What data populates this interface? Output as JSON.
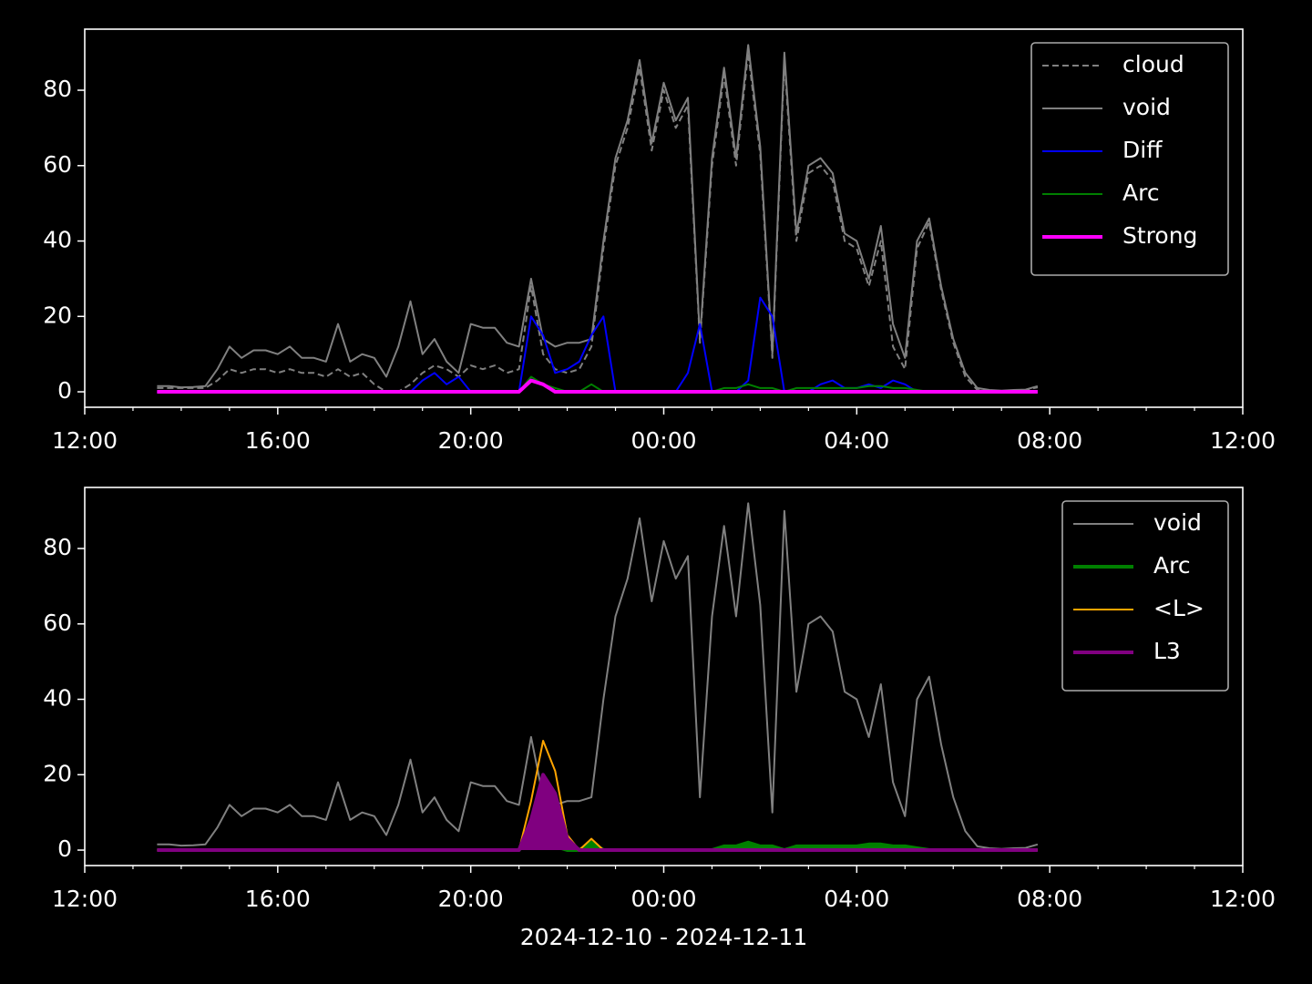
{
  "chart_data": [
    {
      "type": "line",
      "x": [
        1.5,
        1.75,
        2,
        2.25,
        2.5,
        2.75,
        3,
        3.25,
        3.5,
        3.75,
        4,
        4.25,
        4.5,
        4.75,
        5,
        5.25,
        5.5,
        5.75,
        6,
        6.25,
        6.5,
        6.75,
        7,
        7.25,
        7.5,
        7.75,
        8,
        8.25,
        8.5,
        8.75,
        9,
        9.25,
        9.5,
        9.75,
        10,
        10.25,
        10.5,
        10.75,
        11,
        11.25,
        11.5,
        11.75,
        12,
        12.25,
        12.5,
        12.75,
        13,
        13.25,
        13.5,
        13.75,
        14,
        14.25,
        14.5,
        14.75,
        15,
        15.25,
        15.5,
        15.75,
        16,
        16.25,
        16.5,
        16.75,
        17,
        17.25,
        17.5,
        17.75,
        18,
        18.25,
        18.5,
        18.75,
        19,
        19.25,
        19.5,
        19.75
      ],
      "series": [
        {
          "name": "cloud",
          "color": "#808080",
          "dash": "dashed",
          "linewidth": 2,
          "values": [
            1,
            1,
            1,
            1,
            1,
            3,
            6,
            5,
            6,
            6,
            5,
            6,
            5,
            5,
            4,
            6,
            4,
            5,
            2,
            0,
            0,
            2,
            5,
            7,
            6,
            4,
            7,
            6,
            7,
            5,
            6,
            28,
            10,
            6,
            5,
            6,
            12,
            38,
            60,
            70,
            86,
            64,
            80,
            70,
            76,
            13,
            60,
            84,
            60,
            90,
            63,
            9,
            88,
            40,
            58,
            60,
            56,
            40,
            38,
            28,
            40,
            12,
            6,
            38,
            45,
            27,
            13,
            4,
            0.5,
            0.3,
            0.2,
            0.3,
            0.5,
            1.2
          ]
        },
        {
          "name": "void",
          "color": "#808080",
          "linewidth": 2,
          "values": [
            1.5,
            1.5,
            1.2,
            1.3,
            1.5,
            6,
            12,
            9,
            11,
            11,
            10,
            12,
            9,
            9,
            8,
            18,
            8,
            10,
            9,
            4,
            12,
            24,
            10,
            14,
            8,
            5,
            18,
            17,
            17,
            13,
            12,
            30,
            14,
            12,
            13,
            13,
            14,
            40,
            62,
            72,
            88,
            66,
            82,
            72,
            78,
            14,
            62,
            86,
            62,
            92,
            65,
            10,
            90,
            42,
            60,
            62,
            58,
            42,
            40,
            30,
            44,
            18,
            9,
            40,
            46,
            28,
            14,
            5,
            1,
            0.5,
            0.3,
            0.5,
            0.6,
            1.5
          ]
        },
        {
          "name": "Diff",
          "color": "#0000ff",
          "linewidth": 2,
          "values": [
            0,
            0,
            0,
            0,
            0,
            0,
            0,
            0,
            0,
            0,
            0,
            0,
            0,
            0,
            0,
            0,
            0,
            0,
            0,
            0,
            0,
            0,
            3,
            5,
            2,
            4,
            0,
            0,
            0,
            0,
            0,
            20,
            15,
            5,
            6,
            8,
            15,
            20,
            0,
            0,
            0,
            0,
            0,
            0,
            5,
            18,
            0,
            0,
            0,
            3,
            25,
            20,
            0,
            0,
            0,
            2,
            3,
            1,
            1,
            2,
            1,
            3,
            2,
            0,
            0,
            0,
            0,
            0,
            0,
            0,
            0,
            0,
            0,
            0
          ]
        },
        {
          "name": "Arc",
          "color": "#008000",
          "linewidth": 2,
          "values": [
            0,
            0,
            0,
            0,
            0,
            0,
            0,
            0,
            0,
            0,
            0,
            0,
            0,
            0,
            0,
            0,
            0,
            0,
            0,
            0,
            0,
            0,
            0,
            0,
            0,
            0,
            0,
            0,
            0,
            0,
            0,
            4,
            2,
            1,
            0,
            0,
            2,
            0,
            0,
            0,
            0,
            0,
            0,
            0,
            0,
            0,
            0,
            1,
            1,
            2,
            1,
            1,
            0,
            1,
            1,
            1,
            1,
            1,
            1,
            1.5,
            1.5,
            1,
            1,
            0.5,
            0,
            0,
            0,
            0,
            0,
            0,
            0,
            0,
            0,
            0
          ]
        },
        {
          "name": "Strong",
          "color": "#ff00ff",
          "linewidth": 4,
          "values": [
            0,
            0,
            0,
            0,
            0,
            0,
            0,
            0,
            0,
            0,
            0,
            0,
            0,
            0,
            0,
            0,
            0,
            0,
            0,
            0,
            0,
            0,
            0,
            0,
            0,
            0,
            0,
            0,
            0,
            0,
            0,
            3,
            2,
            0,
            0,
            0,
            0,
            0,
            0,
            0,
            0,
            0,
            0,
            0,
            0,
            0,
            0,
            0,
            0,
            0,
            0,
            0,
            0,
            0,
            0,
            0,
            0,
            0,
            0,
            0,
            0,
            0,
            0,
            0,
            0,
            0,
            0,
            0,
            0,
            0,
            0,
            0,
            0,
            0
          ]
        }
      ],
      "xlim": [
        0,
        24
      ],
      "xticks": [
        {
          "value": 0,
          "label": "12:00"
        },
        {
          "value": 4,
          "label": "16:00"
        },
        {
          "value": 8,
          "label": "20:00"
        },
        {
          "value": 12,
          "label": "00:00"
        },
        {
          "value": 16,
          "label": "04:00"
        },
        {
          "value": 20,
          "label": "08:00"
        },
        {
          "value": 24,
          "label": "12:00"
        }
      ],
      "xminorticks": [
        1,
        2,
        3,
        5,
        6,
        7,
        9,
        10,
        11,
        13,
        14,
        15,
        17,
        18,
        19,
        21,
        22,
        23
      ],
      "ylim": [
        -4.1,
        96.2
      ],
      "yticks": [
        0,
        20,
        40,
        60,
        80
      ],
      "legend": "upper right"
    },
    {
      "type": "line",
      "x": [
        1.5,
        1.75,
        2,
        2.25,
        2.5,
        2.75,
        3,
        3.25,
        3.5,
        3.75,
        4,
        4.25,
        4.5,
        4.75,
        5,
        5.25,
        5.5,
        5.75,
        6,
        6.25,
        6.5,
        6.75,
        7,
        7.25,
        7.5,
        7.75,
        8,
        8.25,
        8.5,
        8.75,
        9,
        9.25,
        9.5,
        9.75,
        10,
        10.25,
        10.5,
        10.75,
        11,
        11.25,
        11.5,
        11.75,
        12,
        12.25,
        12.5,
        12.75,
        13,
        13.25,
        13.5,
        13.75,
        14,
        14.25,
        14.5,
        14.75,
        15,
        15.25,
        15.5,
        15.75,
        16,
        16.25,
        16.5,
        16.75,
        17,
        17.25,
        17.5,
        17.75,
        18,
        18.25,
        18.5,
        18.75,
        19,
        19.25,
        19.5,
        19.75
      ],
      "series": [
        {
          "name": "void",
          "color": "#808080",
          "linewidth": 2,
          "values": [
            1.5,
            1.5,
            1.2,
            1.3,
            1.5,
            6,
            12,
            9,
            11,
            11,
            10,
            12,
            9,
            9,
            8,
            18,
            8,
            10,
            9,
            4,
            12,
            24,
            10,
            14,
            8,
            5,
            18,
            17,
            17,
            13,
            12,
            30,
            14,
            12,
            13,
            13,
            14,
            40,
            62,
            72,
            88,
            66,
            82,
            72,
            78,
            14,
            62,
            86,
            62,
            92,
            65,
            10,
            90,
            42,
            60,
            62,
            58,
            42,
            40,
            30,
            44,
            18,
            9,
            40,
            46,
            28,
            14,
            5,
            1,
            0.5,
            0.3,
            0.5,
            0.6,
            1.5
          ]
        },
        {
          "name": "Arc",
          "color": "#008000",
          "linewidth": 4,
          "fill": true,
          "values": [
            0,
            0,
            0,
            0,
            0,
            0,
            0,
            0,
            0,
            0,
            0,
            0,
            0,
            0,
            0,
            0,
            0,
            0,
            0,
            0,
            0,
            0,
            0,
            0,
            0,
            0,
            0,
            0,
            0,
            0,
            0,
            4,
            2,
            1,
            0,
            0,
            2,
            0,
            0,
            0,
            0,
            0,
            0,
            0,
            0,
            0,
            0,
            1,
            1,
            2,
            1,
            1,
            0,
            1,
            1,
            1,
            1,
            1,
            1,
            1.5,
            1.5,
            1,
            1,
            0.5,
            0,
            0,
            0,
            0,
            0,
            0,
            0,
            0,
            0,
            0
          ]
        },
        {
          "name": "<L>",
          "color": "#ffa500",
          "linewidth": 2,
          "values": [
            0,
            0,
            0,
            0,
            0,
            0,
            0,
            0,
            0,
            0,
            0,
            0,
            0,
            0,
            0,
            0,
            0,
            0,
            0,
            0,
            0,
            0,
            0,
            0,
            0,
            0,
            0,
            0,
            0,
            0,
            0,
            13,
            29,
            21,
            4,
            0,
            3,
            0,
            0,
            0,
            0,
            0,
            0,
            0,
            0,
            0,
            0,
            0,
            0,
            0,
            0,
            0,
            0,
            0,
            0,
            0,
            0,
            0,
            0,
            0,
            0,
            0,
            0,
            0,
            0,
            0,
            0,
            0,
            0,
            0,
            0,
            0,
            0,
            0
          ]
        },
        {
          "name": "L3",
          "color": "#800080",
          "linewidth": 4,
          "fill": true,
          "values": [
            0,
            0,
            0,
            0,
            0,
            0,
            0,
            0,
            0,
            0,
            0,
            0,
            0,
            0,
            0,
            0,
            0,
            0,
            0,
            0,
            0,
            0,
            0,
            0,
            0,
            0,
            0,
            0,
            0,
            0,
            0,
            8,
            20,
            15,
            3,
            0,
            0,
            0,
            0,
            0,
            0,
            0,
            0,
            0,
            0,
            0,
            0,
            0,
            0,
            0,
            0,
            0,
            0,
            0,
            0,
            0,
            0,
            0,
            0,
            0,
            0,
            0,
            0,
            0,
            0,
            0,
            0,
            0,
            0,
            0,
            0,
            0,
            0,
            0
          ]
        }
      ],
      "xlim": [
        0,
        24
      ],
      "xticks": [
        {
          "value": 0,
          "label": "12:00"
        },
        {
          "value": 4,
          "label": "16:00"
        },
        {
          "value": 8,
          "label": "20:00"
        },
        {
          "value": 12,
          "label": "00:00"
        },
        {
          "value": 16,
          "label": "04:00"
        },
        {
          "value": 20,
          "label": "08:00"
        },
        {
          "value": 24,
          "label": "12:00"
        }
      ],
      "xminorticks": [
        1,
        2,
        3,
        5,
        6,
        7,
        9,
        10,
        11,
        13,
        14,
        15,
        17,
        18,
        19,
        21,
        22,
        23
      ],
      "ylim": [
        -4.1,
        96.2
      ],
      "yticks": [
        0,
        20,
        40,
        60,
        80
      ],
      "xlabel": "2024-12-10 - 2024-12-11",
      "legend": "upper right"
    }
  ]
}
